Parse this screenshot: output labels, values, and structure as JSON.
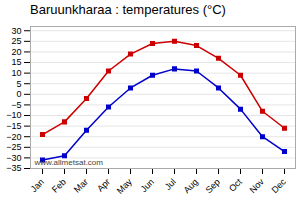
{
  "chart_data": {
    "type": "line",
    "title": "Baruunkharaa : temperatures (°C)",
    "categories": [
      "Jan",
      "Feb",
      "Mar",
      "Apr",
      "May",
      "Jun",
      "Jul",
      "Aug",
      "Sep",
      "Oct",
      "Nov",
      "Dec"
    ],
    "series": [
      {
        "color": "#cc0000",
        "marker": "square",
        "values": [
          -19,
          -13,
          -2,
          11,
          19,
          24,
          25,
          23,
          17,
          9,
          -8,
          -16
        ]
      },
      {
        "color": "#0000cc",
        "marker": "square",
        "values": [
          -31,
          -29,
          -17,
          -6,
          3,
          9,
          12,
          11,
          3,
          -7,
          -20,
          -27
        ]
      }
    ],
    "ylim": [
      -35,
      32
    ],
    "yticks": [
      -35,
      -30,
      -25,
      -20,
      -15,
      -10,
      -5,
      0,
      5,
      10,
      15,
      20,
      25,
      30
    ],
    "grid": true,
    "annotations": [
      "www.allmetsat.com"
    ]
  }
}
